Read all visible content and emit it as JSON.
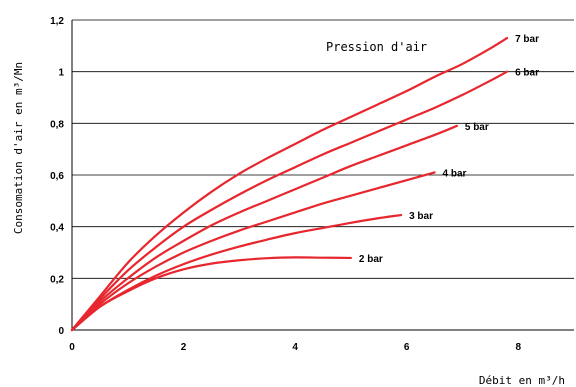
{
  "chart_data": {
    "type": "line",
    "title": "",
    "xlabel": "Débit en m³/h",
    "ylabel": "Consomation d'air en m³/Mn",
    "annotation": "Pression d'air",
    "xlim": [
      0,
      9
    ],
    "ylim": [
      0,
      1.2
    ],
    "x_ticks": [
      "0",
      "2",
      "4",
      "6",
      "8"
    ],
    "x_tick_values": [
      0,
      2,
      4,
      6,
      8
    ],
    "y_ticks": [
      "0",
      "0,2",
      "0,4",
      "0,6",
      "0,8",
      "1",
      "1,2"
    ],
    "y_tick_values": [
      0,
      0.2,
      0.4,
      0.6,
      0.8,
      1.0,
      1.2
    ],
    "grid": "horizontal",
    "line_color": "#e8262e",
    "series": [
      {
        "name": "2 bar",
        "x": [
          0,
          0.5,
          1,
          1.5,
          2,
          2.5,
          3,
          3.5,
          4,
          4.5,
          5
        ],
        "y": [
          0,
          0.09,
          0.15,
          0.2,
          0.235,
          0.257,
          0.27,
          0.278,
          0.281,
          0.28,
          0.279
        ]
      },
      {
        "name": "3 bar",
        "x": [
          0,
          0.5,
          1,
          1.5,
          2,
          2.5,
          3,
          3.5,
          4,
          4.5,
          5,
          5.5,
          5.9
        ],
        "y": [
          0,
          0.09,
          0.155,
          0.21,
          0.255,
          0.292,
          0.323,
          0.35,
          0.375,
          0.395,
          0.415,
          0.433,
          0.445
        ]
      },
      {
        "name": "4 bar",
        "x": [
          0,
          0.5,
          1,
          1.5,
          2,
          2.5,
          3,
          3.5,
          4,
          4.5,
          5,
          5.5,
          6,
          6.5
        ],
        "y": [
          0,
          0.1,
          0.18,
          0.245,
          0.3,
          0.345,
          0.385,
          0.42,
          0.455,
          0.49,
          0.52,
          0.55,
          0.58,
          0.61
        ]
      },
      {
        "name": "5 bar",
        "x": [
          0,
          0.5,
          1,
          1.5,
          2,
          2.5,
          3,
          3.5,
          4,
          4.5,
          5,
          5.5,
          6,
          6.5,
          6.9
        ],
        "y": [
          0,
          0.11,
          0.2,
          0.28,
          0.345,
          0.405,
          0.455,
          0.5,
          0.545,
          0.59,
          0.635,
          0.675,
          0.715,
          0.755,
          0.79
        ]
      },
      {
        "name": "6 bar",
        "x": [
          0,
          0.5,
          1,
          1.5,
          2,
          2.5,
          3,
          3.5,
          4,
          4.5,
          5,
          5.5,
          6,
          6.5,
          7,
          7.5,
          7.8
        ],
        "y": [
          0,
          0.12,
          0.23,
          0.32,
          0.4,
          0.465,
          0.525,
          0.58,
          0.63,
          0.68,
          0.725,
          0.77,
          0.815,
          0.86,
          0.91,
          0.965,
          1.0
        ]
      },
      {
        "name": "7 bar",
        "x": [
          0,
          0.5,
          1,
          1.5,
          2,
          2.5,
          3,
          3.5,
          4,
          4.5,
          5,
          5.5,
          6,
          6.5,
          7,
          7.5,
          7.8
        ],
        "y": [
          0,
          0.13,
          0.26,
          0.365,
          0.455,
          0.535,
          0.605,
          0.665,
          0.72,
          0.775,
          0.825,
          0.875,
          0.925,
          0.98,
          1.03,
          1.09,
          1.13
        ]
      }
    ]
  }
}
